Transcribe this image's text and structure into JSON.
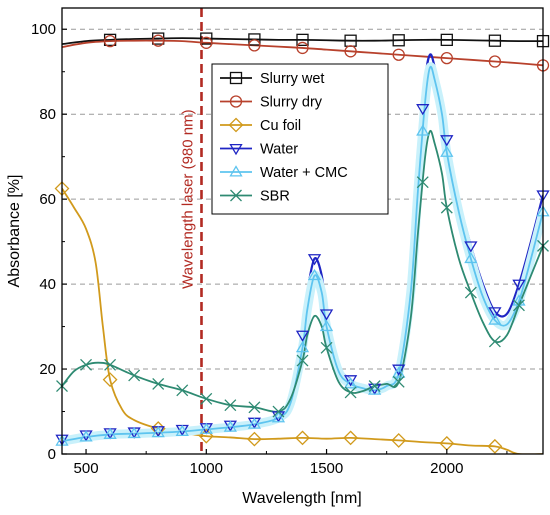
{
  "chart_data": {
    "type": "line",
    "xlabel": "Wavelength [nm]",
    "ylabel": "Absorbance [%]",
    "xlim": [
      400,
      2400
    ],
    "ylim": [
      0,
      105
    ],
    "x_ticks": [
      500,
      1000,
      1500,
      2000
    ],
    "y_ticks": [
      0,
      20,
      40,
      60,
      80,
      100
    ],
    "grid": "horizontal dashed",
    "legend_position": "inside-center",
    "annotation": {
      "text": "Wavelength laser (980 nm)",
      "x": 980,
      "color": "#b22a22"
    },
    "series": [
      {
        "name": "Slurry wet",
        "color": "#111111",
        "marker": "square",
        "x": [
          400,
          500,
          600,
          700,
          800,
          900,
          1000,
          1100,
          1200,
          1300,
          1400,
          1500,
          1600,
          1700,
          1800,
          1900,
          2000,
          2100,
          2200,
          2300,
          2400
        ],
        "y": [
          96.5,
          97.2,
          97.5,
          97.7,
          97.8,
          97.9,
          97.8,
          97.7,
          97.6,
          97.5,
          97.5,
          97.4,
          97.3,
          97.3,
          97.4,
          97.5,
          97.5,
          97.4,
          97.3,
          97.2,
          97.2
        ],
        "markers_x": [
          600,
          800,
          1000,
          1200,
          1400,
          1600,
          1800,
          2000,
          2200,
          2400
        ]
      },
      {
        "name": "Slurry dry",
        "color": "#b8412c",
        "marker": "circle",
        "x": [
          400,
          500,
          600,
          700,
          800,
          900,
          1000,
          1100,
          1200,
          1300,
          1400,
          1500,
          1600,
          1700,
          1800,
          1900,
          2000,
          2100,
          2200,
          2300,
          2400
        ],
        "y": [
          95.8,
          96.8,
          97.2,
          97.3,
          97.3,
          97.2,
          96.8,
          96.5,
          96.2,
          95.9,
          95.6,
          95.2,
          94.8,
          94.4,
          94.0,
          93.6,
          93.2,
          92.8,
          92.4,
          92.0,
          91.5
        ],
        "markers_x": [
          600,
          800,
          1000,
          1200,
          1400,
          1600,
          1800,
          2000,
          2200,
          2400
        ]
      },
      {
        "name": "Cu foil",
        "color": "#d19a1c",
        "marker": "diamond",
        "x": [
          400,
          450,
          500,
          540,
          570,
          600,
          650,
          700,
          800,
          900,
          1000,
          1100,
          1200,
          1300,
          1400,
          1500,
          1600,
          1700,
          1800,
          1900,
          2000,
          2100,
          2200,
          2250,
          2300,
          2400
        ],
        "y": [
          62.5,
          58.0,
          53.0,
          45.0,
          30.0,
          17.5,
          10.5,
          8.0,
          6.0,
          5.0,
          4.2,
          3.9,
          3.5,
          3.6,
          3.8,
          3.6,
          3.8,
          3.5,
          3.2,
          2.8,
          2.5,
          2.0,
          1.8,
          1.0,
          0.0,
          0.0
        ],
        "markers_x": [
          400,
          600,
          800,
          1000,
          1200,
          1400,
          1600,
          1800,
          2000,
          2200
        ]
      },
      {
        "name": "Water",
        "color": "#1f25c4",
        "marker": "triangle-down",
        "x": [
          400,
          500,
          600,
          700,
          800,
          900,
          1000,
          1100,
          1200,
          1300,
          1350,
          1400,
          1420,
          1450,
          1480,
          1500,
          1550,
          1600,
          1650,
          1700,
          1750,
          1800,
          1850,
          1880,
          1910,
          1930,
          1950,
          1980,
          2000,
          2050,
          2100,
          2150,
          2200,
          2250,
          2300,
          2350,
          2400
        ],
        "y": [
          3.5,
          4.5,
          5.0,
          5.2,
          5.5,
          5.8,
          6.2,
          6.8,
          7.5,
          9.0,
          13.0,
          28.0,
          38.0,
          46.0,
          42.0,
          33.0,
          21.0,
          17.5,
          16.0,
          15.5,
          16.5,
          20.0,
          42.0,
          68.0,
          88.0,
          94.0,
          91.0,
          83.0,
          74.0,
          60.0,
          49.0,
          40.0,
          33.5,
          33.0,
          40.0,
          50.0,
          61.0
        ],
        "markers_x": [
          400,
          500,
          600,
          700,
          800,
          900,
          1000,
          1100,
          1200,
          1300,
          1400,
          1450,
          1500,
          1600,
          1700,
          1800,
          1900,
          2000,
          2100,
          2200,
          2300,
          2400
        ]
      },
      {
        "name": "Water + CMC",
        "color": "#5ec4ef",
        "marker": "triangle-up",
        "x": [
          400,
          500,
          600,
          700,
          800,
          900,
          1000,
          1100,
          1200,
          1300,
          1350,
          1400,
          1420,
          1450,
          1480,
          1500,
          1550,
          1600,
          1650,
          1700,
          1750,
          1800,
          1850,
          1880,
          1910,
          1930,
          1950,
          1980,
          2000,
          2050,
          2100,
          2150,
          2200,
          2250,
          2300,
          2350,
          2400
        ],
        "y": [
          3.0,
          4.0,
          4.6,
          4.8,
          5.0,
          5.3,
          5.8,
          6.3,
          7.0,
          8.5,
          12.0,
          25.0,
          34.0,
          42.0,
          38.0,
          30.0,
          19.5,
          16.5,
          15.5,
          15.0,
          16.0,
          19.0,
          38.0,
          62.0,
          83.0,
          91.0,
          88.0,
          80.0,
          71.0,
          57.0,
          46.0,
          37.0,
          31.5,
          30.5,
          36.0,
          46.0,
          57.0
        ],
        "markers_x": [
          400,
          500,
          600,
          700,
          800,
          900,
          1000,
          1100,
          1200,
          1300,
          1400,
          1450,
          1500,
          1600,
          1700,
          1800,
          1900,
          2000,
          2100,
          2200,
          2300,
          2400
        ]
      },
      {
        "name": "SBR",
        "color": "#2e8a72",
        "marker": "x",
        "x": [
          400,
          450,
          500,
          550,
          600,
          700,
          800,
          900,
          1000,
          1100,
          1200,
          1300,
          1350,
          1400,
          1420,
          1450,
          1480,
          1500,
          1550,
          1600,
          1650,
          1700,
          1750,
          1800,
          1850,
          1880,
          1910,
          1930,
          1950,
          1980,
          2000,
          2050,
          2100,
          2150,
          2200,
          2250,
          2300,
          2350,
          2400
        ],
        "y": [
          16.0,
          19.5,
          21.0,
          21.5,
          21.0,
          18.5,
          16.5,
          15.0,
          13.0,
          11.5,
          11.0,
          10.0,
          13.0,
          22.0,
          28.0,
          32.5,
          30.0,
          25.0,
          17.0,
          14.5,
          14.8,
          16.0,
          16.5,
          17.0,
          32.0,
          52.0,
          70.0,
          76.0,
          73.0,
          66.0,
          58.0,
          46.0,
          38.0,
          31.0,
          26.5,
          28.0,
          35.0,
          42.0,
          49.0
        ],
        "markers_x": [
          400,
          500,
          600,
          700,
          800,
          900,
          1000,
          1100,
          1200,
          1300,
          1400,
          1500,
          1600,
          1700,
          1800,
          1900,
          2000,
          2100,
          2200,
          2300,
          2400
        ]
      }
    ]
  }
}
